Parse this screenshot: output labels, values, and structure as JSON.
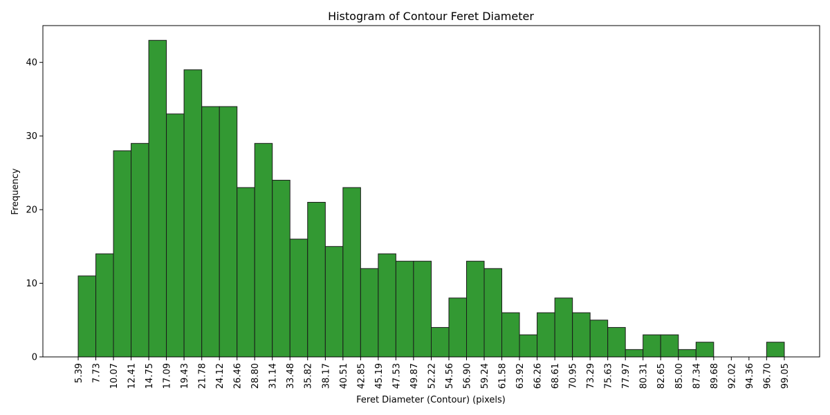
{
  "chart_data": {
    "type": "bar",
    "title": "Histogram of Contour Feret Diameter",
    "xlabel": "Feret Diameter (Contour) (pixels)",
    "ylabel": "Frequency",
    "bin_edges": [
      "5.39",
      "7.73",
      "10.07",
      "12.41",
      "14.75",
      "17.09",
      "19.43",
      "21.78",
      "24.12",
      "26.46",
      "28.80",
      "31.14",
      "33.48",
      "35.82",
      "38.17",
      "40.51",
      "42.85",
      "45.19",
      "47.53",
      "49.87",
      "52.22",
      "54.56",
      "56.90",
      "59.24",
      "61.58",
      "63.92",
      "66.26",
      "68.61",
      "70.95",
      "73.29",
      "75.63",
      "77.97",
      "80.31",
      "82.65",
      "85.00",
      "87.34",
      "89.68",
      "92.02",
      "94.36",
      "96.70",
      "99.05"
    ],
    "values": [
      11,
      14,
      28,
      29,
      43,
      33,
      39,
      34,
      34,
      23,
      29,
      24,
      16,
      21,
      15,
      23,
      12,
      14,
      13,
      13,
      4,
      8,
      13,
      12,
      6,
      3,
      6,
      8,
      6,
      5,
      4,
      1,
      3,
      3,
      1,
      2,
      0,
      0,
      0,
      2
    ],
    "yticks": [
      "0",
      "10",
      "20",
      "30",
      "40"
    ],
    "ylim": [
      0,
      45
    ],
    "bar_color": "#339933",
    "edge_color": "#1a1a1a",
    "grid": false
  }
}
